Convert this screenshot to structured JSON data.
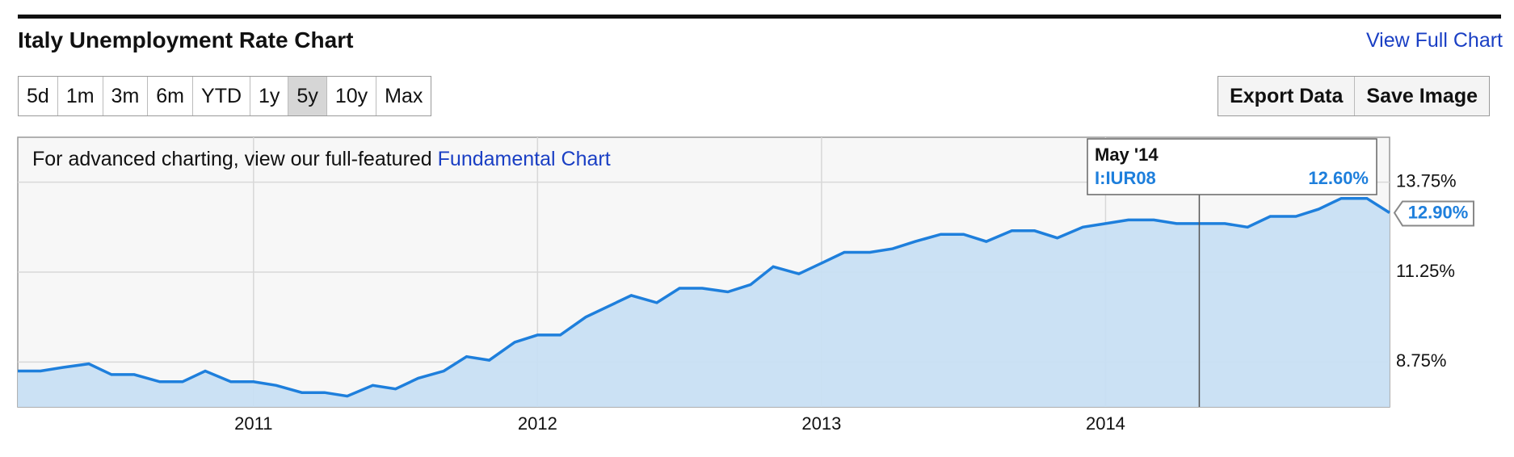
{
  "header": {
    "title": "Italy Unemployment Rate Chart",
    "link": "View Full Chart"
  },
  "controls": {
    "ranges": [
      "5d",
      "1m",
      "3m",
      "6m",
      "YTD",
      "1y",
      "5y",
      "10y",
      "Max"
    ],
    "selected": 6,
    "actions": [
      "Export Data",
      "Save Image"
    ]
  },
  "chart_data": {
    "type": "area",
    "note": "For advanced charting, view our full-featured",
    "note_link": "Fundamental Chart",
    "x": [
      2010.17,
      2010.25,
      2010.33,
      2010.42,
      2010.5,
      2010.58,
      2010.67,
      2010.75,
      2010.83,
      2010.92,
      2011,
      2011.08,
      2011.17,
      2011.25,
      2011.33,
      2011.42,
      2011.5,
      2011.58,
      2011.67,
      2011.75,
      2011.83,
      2011.92,
      2012,
      2012.08,
      2012.17,
      2012.25,
      2012.33,
      2012.42,
      2012.5,
      2012.58,
      2012.67,
      2012.75,
      2012.83,
      2012.92,
      2013,
      2013.08,
      2013.17,
      2013.25,
      2013.33,
      2013.42,
      2013.5,
      2013.58,
      2013.67,
      2013.75,
      2013.83,
      2013.92,
      2014,
      2014.08,
      2014.17,
      2014.25,
      2014.33,
      2014.42,
      2014.5,
      2014.58,
      2014.67,
      2014.75,
      2014.83,
      2014.92,
      2015
    ],
    "series": [
      {
        "name": "I:IUR08",
        "color": "#1e7fdc",
        "fill": "#c8dff3",
        "values": [
          8.5,
          8.5,
          8.6,
          8.7,
          8.4,
          8.4,
          8.2,
          8.2,
          8.5,
          8.2,
          8.2,
          8.1,
          7.9,
          7.9,
          7.8,
          8.1,
          8.0,
          8.3,
          8.5,
          8.9,
          8.8,
          9.3,
          9.5,
          9.5,
          10.0,
          10.3,
          10.6,
          10.4,
          10.8,
          10.8,
          10.7,
          10.9,
          11.4,
          11.2,
          11.5,
          11.8,
          11.8,
          11.9,
          12.1,
          12.3,
          12.3,
          12.1,
          12.4,
          12.4,
          12.2,
          12.5,
          12.6,
          12.7,
          12.7,
          12.6,
          12.6,
          12.6,
          12.5,
          12.8,
          12.8,
          13.0,
          13.3,
          13.3,
          12.9
        ],
        "last_label": "12.90%"
      }
    ],
    "xlim": [
      2010.17,
      2015
    ],
    "xticks": [
      2011,
      2012,
      2013,
      2014
    ],
    "ylim": [
      7.5,
      15
    ],
    "yticks": [
      {
        "value": 8.75,
        "label": "8.75%"
      },
      {
        "value": 11.25,
        "label": "11.25%"
      },
      {
        "value": 13.75,
        "label": "13.75%"
      }
    ],
    "grid": true,
    "tooltip": {
      "x": 2014.33,
      "date": "May '14",
      "value": 12.6,
      "label": "12.60%"
    }
  }
}
